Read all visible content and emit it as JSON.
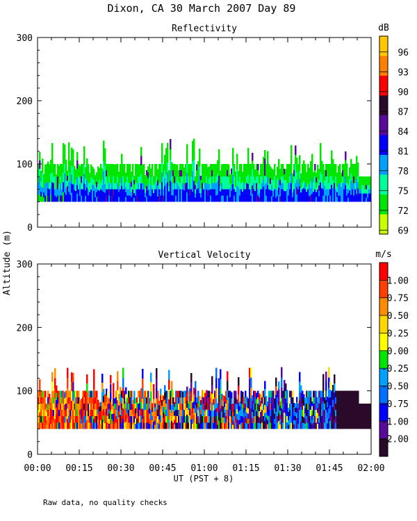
{
  "figure": {
    "title": "Dixon, CA 30 March 2007  Day  89",
    "ylabel": "Altitude (m)",
    "xlabel": "UT  (PST + 8)",
    "footnote": "Raw data, no quality checks"
  },
  "chart_data": [
    {
      "type": "heatmap",
      "title": "Reflectivity",
      "colorbar_unit": "dB",
      "colorbar_ticks": [
        "96",
        "93",
        "90",
        "87",
        "84",
        "81",
        "78",
        "75",
        "72",
        "69"
      ],
      "colorbar_colors": [
        "#ffc800",
        "#ff8000",
        "#ff0000",
        "#2a0a2a",
        "#5a0a9a",
        "#0000ff",
        "#00a0ff",
        "#00ff9a",
        "#00e600",
        "#c8ff00"
      ],
      "x_ticks": [
        "00:00",
        "00:15",
        "00:30",
        "00:45",
        "01:00",
        "01:15",
        "01:30",
        "01:45",
        "02:00"
      ],
      "x_range_minutes": [
        0,
        120
      ],
      "y_ticks": [
        0,
        100,
        200,
        300
      ],
      "ylim": [
        0,
        300
      ],
      "echo_base_m": 40,
      "echo_top_typical_m": 100,
      "echo_top_max_m": 140,
      "dominant_values_dB": [
        72,
        75,
        78,
        81
      ]
    },
    {
      "type": "heatmap",
      "title": "Vertical Velocity",
      "colorbar_unit": "m/s",
      "colorbar_ticks": [
        "1.00",
        "0.75",
        "0.50",
        "0.25",
        "0.00",
        "-0.25",
        "-0.50",
        "-0.75",
        "-1.00",
        "-2.00"
      ],
      "colorbar_colors": [
        "#ff0000",
        "#ff4000",
        "#ff8c00",
        "#ffd700",
        "#ffff00",
        "#00e600",
        "#00a0ff",
        "#0070ff",
        "#0000ff",
        "#5a0a9a",
        "#2a0a2a"
      ],
      "x_ticks": [
        "00:00",
        "00:15",
        "00:30",
        "00:45",
        "01:00",
        "01:15",
        "01:30",
        "01:45",
        "02:00"
      ],
      "x_range_minutes": [
        0,
        120
      ],
      "y_ticks": [
        0,
        100,
        200,
        300
      ],
      "ylim": [
        0,
        300
      ],
      "echo_base_m": 40,
      "echo_top_typical_m": 100,
      "echo_top_max_m": 140,
      "late_period_velocity": "-2.00"
    }
  ]
}
